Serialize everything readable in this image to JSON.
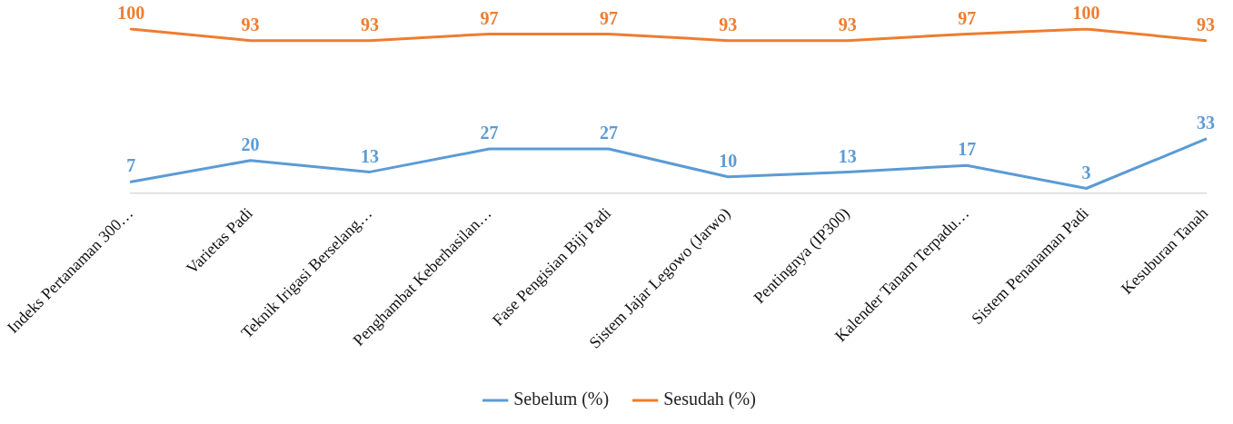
{
  "chart_data": {
    "type": "line",
    "categories": [
      "Indeks Pertanaman 300…",
      "Varietas Padi",
      "Teknik Irigasi Berselang…",
      "Penghambat Keberhasilan…",
      "Fase Pengisian Biji Padi",
      "Sistem Jajar Legowo (Jarwo)",
      "Pentingnya (IP300)",
      "Kalender Tanam Terpadu…",
      "Sistem Penanaman Padi",
      "Kesuburan Tanah"
    ],
    "series": [
      {
        "name": "Sebelum (%)",
        "color": "#5b9bd5",
        "values": [
          7,
          20,
          13,
          27,
          27,
          10,
          13,
          17,
          3,
          33
        ]
      },
      {
        "name": "Sesudah (%)",
        "color": "#ed7d31",
        "values": [
          100,
          93,
          93,
          97,
          97,
          93,
          93,
          97,
          100,
          93
        ]
      }
    ],
    "tick_labels": "x",
    "legend": "bottom",
    "data_labels": true
  }
}
